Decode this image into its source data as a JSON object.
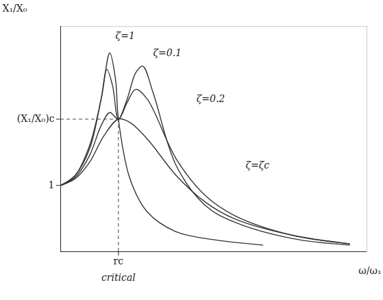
{
  "chart_data": {
    "type": "line",
    "x_label": "ω/ω₁",
    "y_label": "X₁/X₀",
    "xlim": [
      0,
      5.3
    ],
    "ylim": [
      0,
      3.4
    ],
    "xticks": [
      {
        "value": 1,
        "label": "rc"
      }
    ],
    "yticks": [
      1,
      {
        "value": 2,
        "label": "(X₁/X₀)c"
      }
    ],
    "grid": false,
    "series": [
      {
        "name": "ζ=1",
        "color": "#333333",
        "line_style": "solid",
        "x": [
          0,
          0.25,
          0.5,
          0.7,
          0.85,
          0.95,
          1.0,
          1.2,
          1.5,
          2,
          2.5,
          3.5
        ],
        "values": [
          1,
          1.15,
          1.6,
          2.3,
          3.0,
          2.6,
          2.0,
          1.1,
          0.6,
          0.3,
          0.2,
          0.1
        ]
      },
      {
        "name": "ζ=0.1",
        "color": "#333333",
        "line_style": "solid",
        "x": [
          0,
          0.25,
          0.5,
          0.7,
          0.8,
          0.9,
          1.0,
          1.15,
          1.3,
          1.42,
          1.6,
          2,
          2.5,
          3,
          4,
          5
        ],
        "values": [
          1,
          1.15,
          1.55,
          2.3,
          2.75,
          2.5,
          2.0,
          2.3,
          2.7,
          2.8,
          2.4,
          1.3,
          0.7,
          0.45,
          0.2,
          0.1
        ]
      },
      {
        "name": "ζ=0.2",
        "color": "#333333",
        "line_style": "solid",
        "x": [
          0,
          0.25,
          0.5,
          0.7,
          0.85,
          1.0,
          1.15,
          1.3,
          1.5,
          2,
          2.5,
          3,
          4,
          5
        ],
        "values": [
          1,
          1.12,
          1.45,
          1.9,
          2.1,
          2.0,
          2.25,
          2.45,
          2.3,
          1.4,
          0.85,
          0.55,
          0.25,
          0.12
        ]
      },
      {
        "name": "ζ=ζc",
        "color": "#333333",
        "line_style": "solid",
        "x": [
          0,
          0.25,
          0.5,
          0.75,
          1.0,
          1.2,
          1.5,
          2,
          2.5,
          3,
          4,
          5
        ],
        "values": [
          1,
          1.1,
          1.35,
          1.75,
          2.0,
          1.95,
          1.7,
          1.15,
          0.75,
          0.5,
          0.25,
          0.12
        ]
      }
    ],
    "annotations": [
      {
        "text": "ζ=1",
        "x": 0.95,
        "y": 3.25
      },
      {
        "text": "ζ=0.1",
        "x": 1.6,
        "y": 3.0
      },
      {
        "text": "ζ=0.2",
        "x": 2.35,
        "y": 2.3
      },
      {
        "text": "ζ=ζc",
        "x": 3.2,
        "y": 1.3
      },
      {
        "text": "critical",
        "x": 1
      }
    ]
  }
}
